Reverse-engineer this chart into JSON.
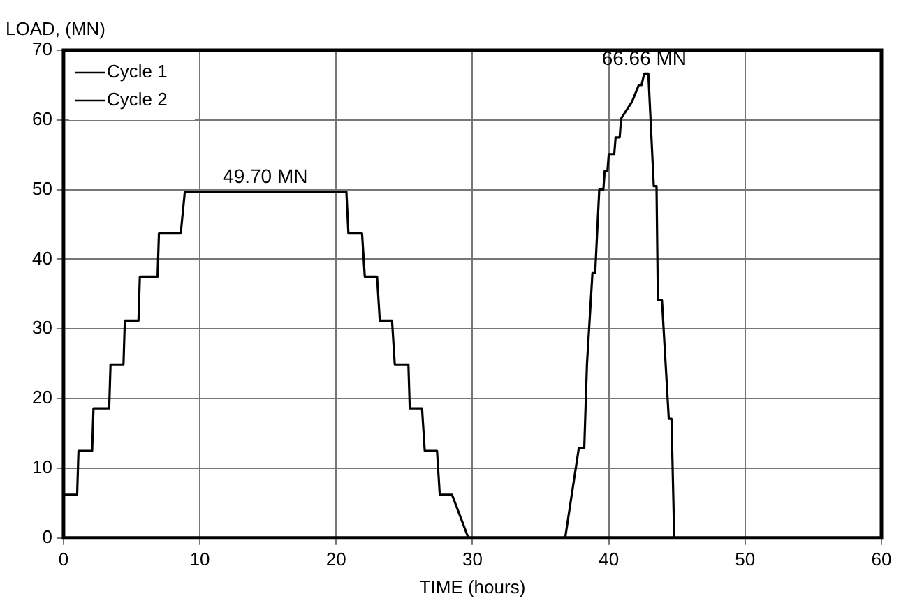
{
  "chart_data": {
    "type": "line",
    "xlabel": "TIME (hours)",
    "ylabel": "LOAD, (MN)",
    "xlim": [
      0,
      60
    ],
    "xticks": [
      0,
      10,
      20,
      30,
      40,
      50,
      60
    ],
    "ylim": [
      0,
      70
    ],
    "yticks": [
      0,
      10,
      20,
      30,
      40,
      50,
      60,
      70
    ],
    "grid": true,
    "legend": "top left",
    "marker": "none",
    "line_style": "solid",
    "series": [
      {
        "name": "Cycle 1",
        "color": "#000000",
        "x": [
          0,
          1.0,
          1.1,
          2.1,
          2.2,
          3.35,
          3.45,
          4.4,
          4.5,
          5.5,
          5.6,
          6.9,
          7.0,
          8.6,
          8.9,
          20.75,
          20.9,
          21.9,
          22.1,
          23.0,
          23.2,
          24.1,
          24.3,
          25.3,
          25.4,
          26.3,
          26.5,
          27.4,
          27.6,
          28.5,
          29.7
        ],
        "values": [
          6.2,
          6.2,
          12.5,
          12.5,
          18.6,
          18.6,
          24.9,
          24.9,
          31.2,
          31.2,
          37.5,
          37.5,
          43.7,
          43.7,
          49.7,
          49.7,
          43.7,
          43.7,
          37.5,
          37.5,
          31.2,
          31.2,
          24.9,
          24.9,
          18.6,
          18.6,
          12.5,
          12.5,
          6.2,
          6.2,
          0
        ]
      },
      {
        "name": "Cycle 2",
        "color": "#000000",
        "x": [
          30,
          36.8,
          37.8,
          38.2,
          38.4,
          38.8,
          39.0,
          39.3,
          39.6,
          39.7,
          39.9,
          40.0,
          40.4,
          40.5,
          40.8,
          40.9,
          41.7,
          42.2,
          42.4,
          42.6,
          42.9,
          43.3,
          43.5,
          43.6,
          43.9,
          44.4,
          44.6,
          44.8,
          45.5
        ],
        "values": [
          0,
          0,
          12.9,
          12.9,
          25.0,
          38.0,
          38.0,
          50.0,
          50.0,
          52.7,
          52.7,
          55.1,
          55.1,
          57.5,
          57.5,
          60.2,
          62.6,
          65.0,
          65.0,
          66.66,
          66.66,
          50.5,
          50.5,
          34.1,
          34.1,
          17.1,
          17.1,
          0,
          0
        ]
      }
    ],
    "annotations": [
      {
        "text": "49.70 MN",
        "x": 14.8,
        "y": 49.7
      },
      {
        "text": "66.66 MN",
        "x": 42.6,
        "y": 66.66
      }
    ]
  }
}
